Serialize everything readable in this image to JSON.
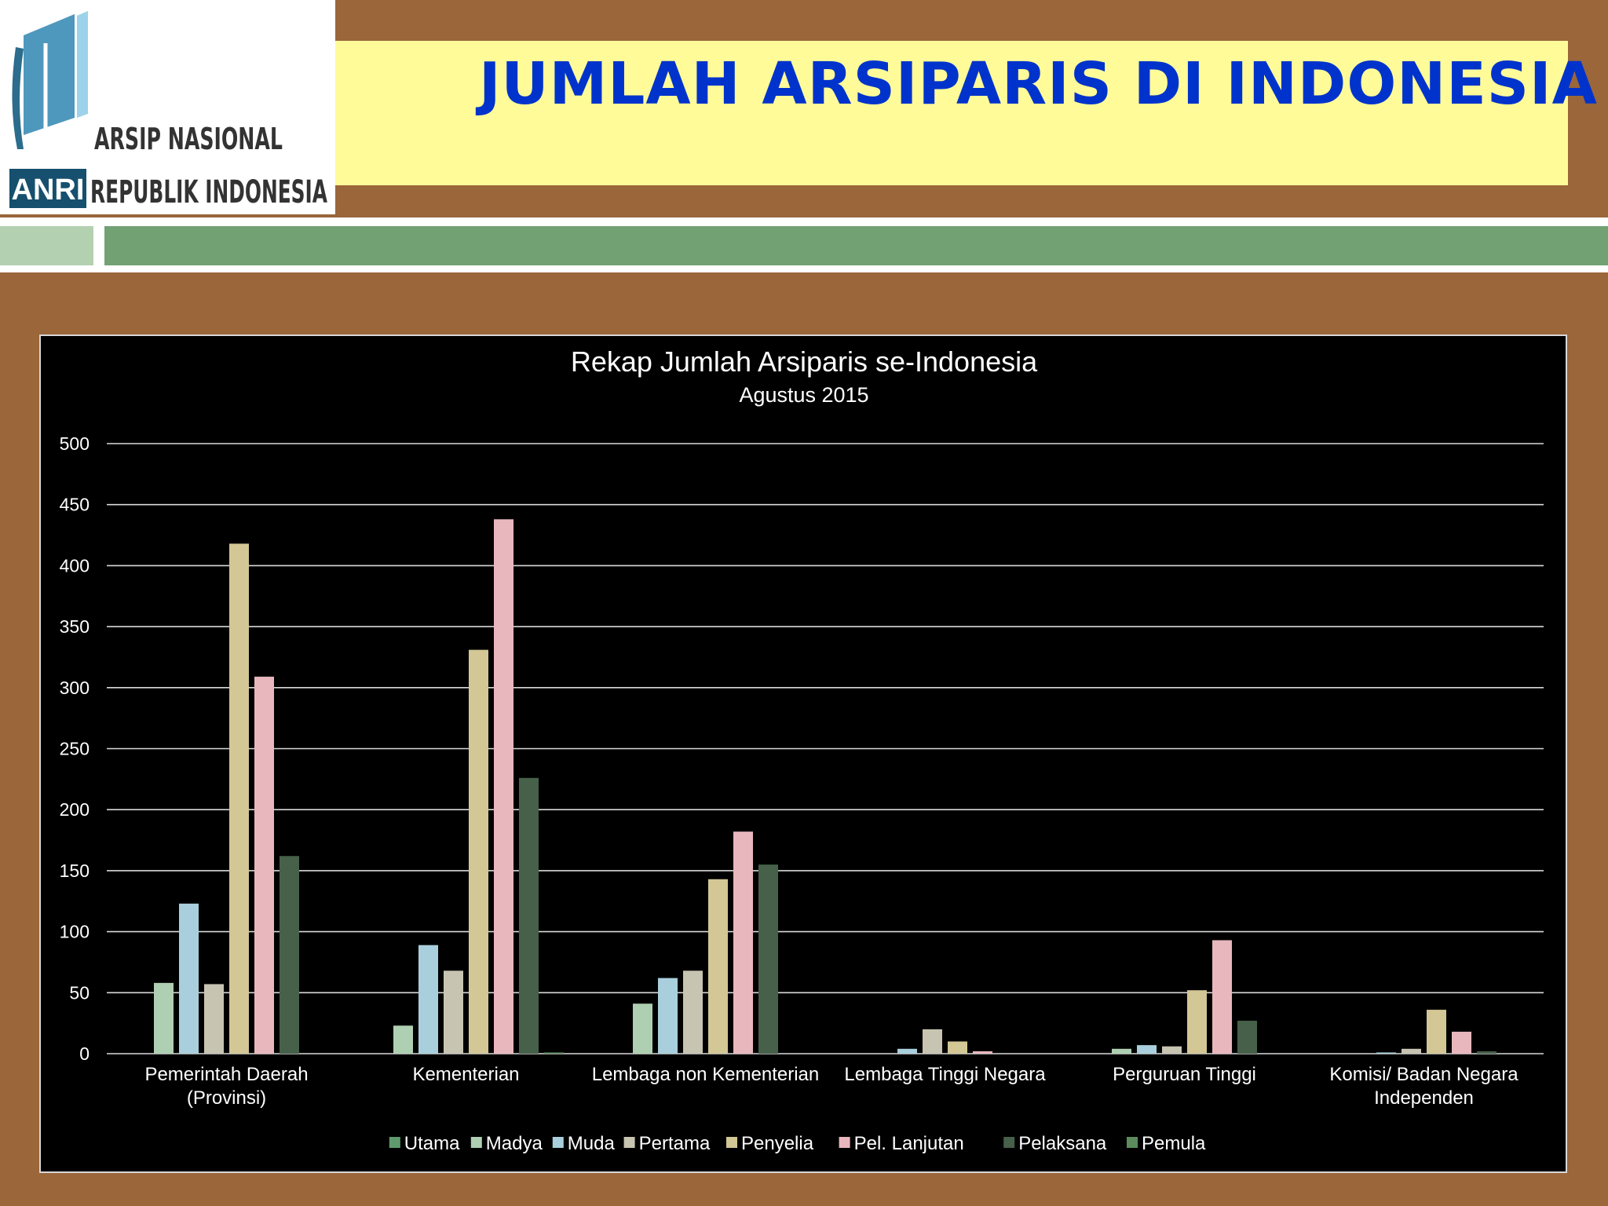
{
  "header": {
    "title": "JUMLAH ARSIPARIS DI INDONESIA",
    "logo": {
      "line1": "ARSIP NASIONAL",
      "line2": "REPUBLIK INDONESIA",
      "badge": "ANRI"
    }
  },
  "colors": {
    "background": "#9a663a",
    "title": "#0033cc",
    "title_band": "#fffb99",
    "accent_green": "#72a274",
    "accent_green_light": "#b3d1b1"
  },
  "chart_data": {
    "type": "bar",
    "title": "Rekap Jumlah Arsiparis se-Indonesia",
    "subtitle": "Agustus 2015",
    "categories": [
      "Pemerintah Daerah (Provinsi)",
      "Kementerian",
      "Lembaga non Kementerian",
      "Lembaga Tinggi Negara",
      "Perguruan Tinggi",
      "Komisi/ Badan Negara Independen"
    ],
    "ylim": [
      0,
      500
    ],
    "yticks": [
      0,
      50,
      100,
      150,
      200,
      250,
      300,
      350,
      400,
      450,
      500
    ],
    "grid": true,
    "legend_position": "bottom",
    "series": [
      {
        "name": "Utama",
        "color": "#5f9a6e",
        "values": [
          0,
          0,
          0,
          0,
          0,
          0
        ]
      },
      {
        "name": "Madya",
        "color": "#aecfb1",
        "values": [
          58,
          23,
          41,
          0,
          4,
          0
        ]
      },
      {
        "name": "Muda",
        "color": "#a9cfdc",
        "values": [
          123,
          89,
          62,
          4,
          7,
          1
        ]
      },
      {
        "name": "Pertama",
        "color": "#c7c4b2",
        "values": [
          57,
          68,
          68,
          20,
          6,
          4
        ]
      },
      {
        "name": "Penyelia",
        "color": "#d2c795",
        "values": [
          418,
          331,
          143,
          10,
          52,
          36
        ]
      },
      {
        "name": "Pel. Lanjutan",
        "color": "#e8b7bd",
        "values": [
          309,
          438,
          182,
          2,
          93,
          18
        ]
      },
      {
        "name": "Pelaksana",
        "color": "#466049",
        "values": [
          162,
          226,
          155,
          0,
          27,
          2
        ]
      },
      {
        "name": "Pemula",
        "color": "#5c8c5c",
        "values": [
          0,
          1,
          0,
          0,
          0,
          0
        ]
      }
    ]
  }
}
